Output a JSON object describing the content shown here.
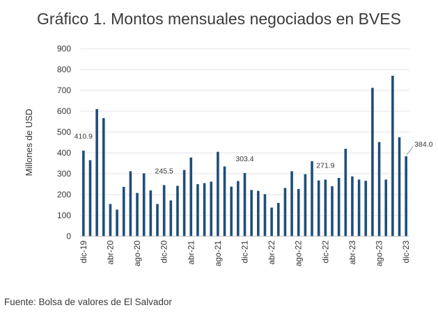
{
  "chart_data": {
    "type": "bar",
    "title": "Gráfico 1. Montos mensuales negociados en BVES",
    "ylabel": "Millones de USD",
    "xlabel": "",
    "ylim": [
      0,
      900
    ],
    "yticks": [
      "0",
      "100",
      "200",
      "300",
      "400",
      "500",
      "600",
      "700",
      "800",
      "900"
    ],
    "grid": true,
    "legend": "none",
    "bar_color": "#1f4e79",
    "grid_color": "#e3e3e3",
    "categories": [
      "dic-19",
      "ene-20",
      "feb-20",
      "mar-20",
      "abr-20",
      "may-20",
      "jun-20",
      "jul-20",
      "ago-20",
      "sep-20",
      "oct-20",
      "nov-20",
      "dic-20",
      "ene-21",
      "feb-21",
      "mar-21",
      "abr-21",
      "may-21",
      "jun-21",
      "jul-21",
      "ago-21",
      "sep-21",
      "oct-21",
      "nov-21",
      "dic-21",
      "ene-22",
      "feb-22",
      "mar-22",
      "abr-22",
      "may-22",
      "jun-22",
      "jul-22",
      "ago-22",
      "sep-22",
      "oct-22",
      "nov-22",
      "dic-22",
      "ene-23",
      "feb-23",
      "mar-23",
      "abr-23",
      "may-23",
      "jun-23",
      "jul-23",
      "ago-23",
      "sep-23",
      "oct-23",
      "nov-23",
      "dic-23"
    ],
    "xtick_labels": [
      "dic-19",
      "abr-20",
      "ago-20",
      "dic-20",
      "abr-21",
      "ago-21",
      "dic-21",
      "abr-22",
      "ago-22",
      "dic-22",
      "abr-23",
      "ago-23",
      "dic-23"
    ],
    "values": [
      410.9,
      365,
      610,
      567,
      155,
      128,
      237,
      312,
      208,
      302,
      220,
      155,
      245.5,
      172,
      242,
      318,
      378,
      250,
      255,
      262,
      405,
      335,
      238,
      265,
      303.4,
      222,
      218,
      202,
      138,
      160,
      232,
      312,
      227,
      298,
      360,
      268,
      271.9,
      240,
      280,
      420,
      287,
      272,
      266,
      712,
      452,
      272,
      770,
      475,
      384.0
    ],
    "data_labels": [
      {
        "category": "dic-19",
        "text": "410.9"
      },
      {
        "category": "dic-20",
        "text": "245.5"
      },
      {
        "category": "dic-21",
        "text": "303.4"
      },
      {
        "category": "dic-22",
        "text": "271.9"
      },
      {
        "category": "dic-23",
        "text": "384.0"
      }
    ]
  },
  "source": "Fuente: Bolsa de valores de El Salvador"
}
